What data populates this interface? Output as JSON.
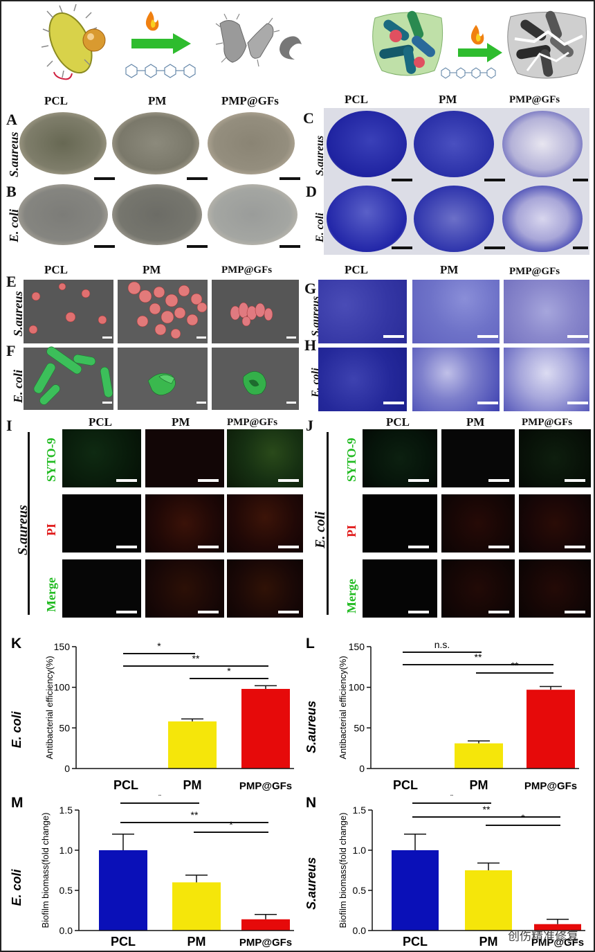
{
  "panels": {
    "A": "A",
    "B": "B",
    "C": "C",
    "D": "D",
    "E": "E",
    "F": "F",
    "G": "G",
    "H": "H",
    "I": "I",
    "J": "J",
    "K": "K",
    "L": "L",
    "M": "M",
    "N": "N"
  },
  "groups": [
    "PCL",
    "PM",
    "PMP@GFs"
  ],
  "species": {
    "saureus": "S.aureus",
    "ecoli": "E. coli"
  },
  "stains": {
    "syto": "SYTO-9",
    "pi": "PI",
    "merge": "Merge"
  },
  "colors": {
    "pcl": "#0a10b8",
    "pm": "#f5e60a",
    "pmp": "#e60a0a",
    "syto": "#22bb22",
    "pi": "#e01818"
  },
  "watermark": "创伤精准修复",
  "chart_data": [
    {
      "panel": "K",
      "type": "bar",
      "categories": [
        "PCL",
        "PM",
        "PMP@GFs"
      ],
      "values": [
        0,
        58,
        98
      ],
      "errors": [
        0,
        3,
        4
      ],
      "colors": [
        "#0a10b8",
        "#f5e60a",
        "#e60a0a"
      ],
      "ylabel": "Antibacterial efficiency(%)",
      "ylim": [
        0,
        150
      ],
      "yticks": [
        "0",
        "50",
        "100",
        "150"
      ],
      "side_label": "E. coli",
      "significance": [
        {
          "pair": [
            "PM",
            "PMP@GFs"
          ],
          "label": "*"
        },
        {
          "pair": [
            "PCL",
            "PM"
          ],
          "label": "*"
        },
        {
          "pair": [
            "PCL",
            "PMP@GFs"
          ],
          "label": "**"
        }
      ]
    },
    {
      "panel": "L",
      "type": "bar",
      "categories": [
        "PCL",
        "PM",
        "PMP@GFs"
      ],
      "values": [
        0,
        31,
        97
      ],
      "errors": [
        0,
        3,
        4
      ],
      "colors": [
        "#0a10b8",
        "#f5e60a",
        "#e60a0a"
      ],
      "ylabel": "Antibacterial efficiency(%)",
      "ylim": [
        0,
        150
      ],
      "yticks": [
        "0",
        "50",
        "100",
        "150"
      ],
      "side_label": "S.aureus",
      "significance": [
        {
          "pair": [
            "PM",
            "PMP@GFs"
          ],
          "label": "**"
        },
        {
          "pair": [
            "PCL",
            "PM"
          ],
          "label": "n.s."
        },
        {
          "pair": [
            "PCL",
            "PMP@GFs"
          ],
          "label": "**"
        }
      ]
    },
    {
      "panel": "M",
      "type": "bar",
      "categories": [
        "PCL",
        "PM",
        "PMP@GFs"
      ],
      "values": [
        1.0,
        0.6,
        0.14
      ],
      "errors": [
        0.2,
        0.09,
        0.06
      ],
      "colors": [
        "#0a10b8",
        "#f5e60a",
        "#e60a0a"
      ],
      "ylabel": "Biofilm biomass(fold change)",
      "ylim": [
        0,
        1.5
      ],
      "yticks": [
        "0.0",
        "0.5",
        "1.0",
        "1.5"
      ],
      "side_label": "E. coli",
      "significance": [
        {
          "pair": [
            "PM",
            "PMP@GFs"
          ],
          "label": "*"
        },
        {
          "pair": [
            "PCL",
            "PM"
          ],
          "label": "*"
        },
        {
          "pair": [
            "PCL",
            "PMP@GFs"
          ],
          "label": "**"
        }
      ]
    },
    {
      "panel": "N",
      "type": "bar",
      "categories": [
        "PCL",
        "PM",
        "PMP@GFs"
      ],
      "values": [
        1.0,
        0.75,
        0.08
      ],
      "errors": [
        0.2,
        0.09,
        0.06
      ],
      "colors": [
        "#0a10b8",
        "#f5e60a",
        "#e60a0a"
      ],
      "ylabel": "Biofilm biomass(fold change)",
      "ylim": [
        0,
        1.5
      ],
      "yticks": [
        "0.0",
        "0.5",
        "1.0",
        "1.5"
      ],
      "side_label": "S.aureus",
      "significance": [
        {
          "pair": [
            "PM",
            "PMP@GFs"
          ],
          "label": "*"
        },
        {
          "pair": [
            "PCL",
            "PM"
          ],
          "label": "*"
        },
        {
          "pair": [
            "PCL",
            "PMP@GFs"
          ],
          "label": "**"
        }
      ]
    }
  ]
}
